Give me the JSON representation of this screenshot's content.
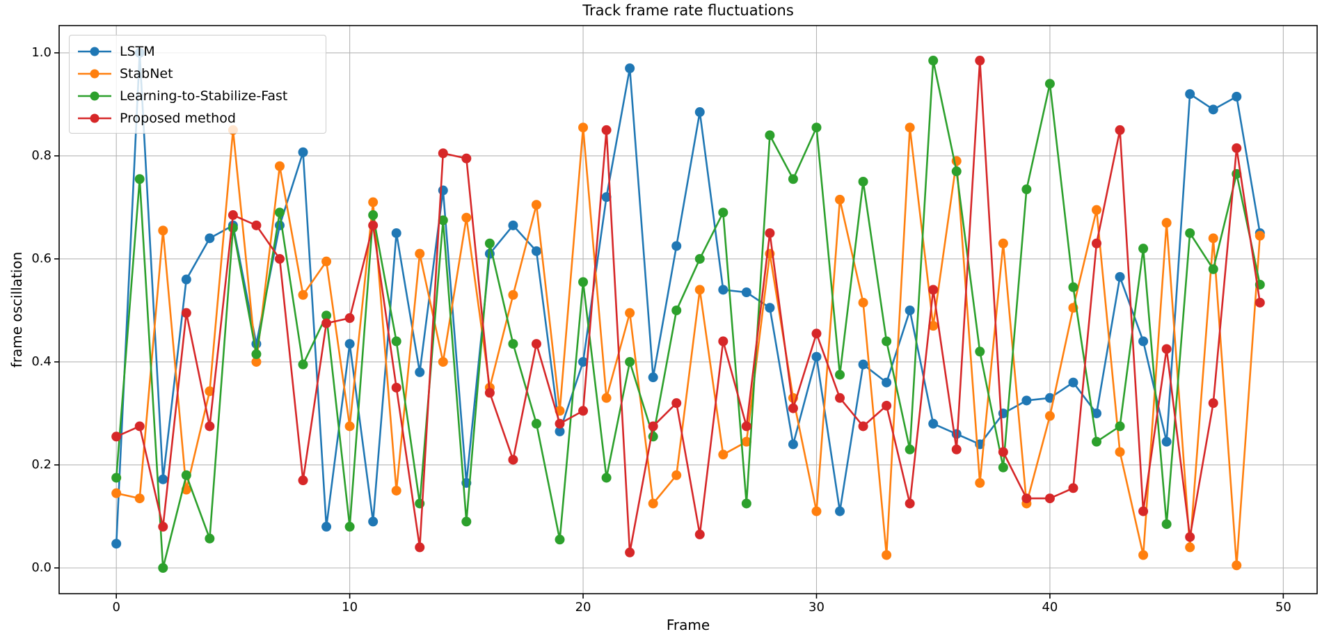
{
  "chart_data": {
    "type": "line",
    "title": "Track frame rate fluctuations",
    "xlabel": "Frame",
    "ylabel": "frame oscillation",
    "xlim": [
      -2.45,
      51.45
    ],
    "ylim": [
      -0.05,
      1.053
    ],
    "xticks": [
      0,
      10,
      20,
      30,
      40,
      50
    ],
    "yticks": [
      0.0,
      0.2,
      0.4,
      0.6,
      0.8,
      1.0
    ],
    "grid": true,
    "legend_position": "upper left",
    "x": [
      0,
      1,
      2,
      3,
      4,
      5,
      6,
      7,
      8,
      9,
      10,
      11,
      12,
      13,
      14,
      15,
      16,
      17,
      18,
      19,
      20,
      21,
      22,
      23,
      24,
      25,
      26,
      27,
      28,
      29,
      30,
      31,
      32,
      33,
      34,
      35,
      36,
      37,
      38,
      39,
      40,
      41,
      42,
      43,
      44,
      45,
      46,
      47,
      48,
      49
    ],
    "series": [
      {
        "name": "LSTM",
        "color": "#1f77b4",
        "values": [
          0.047,
          1.0,
          0.172,
          0.56,
          0.64,
          0.665,
          0.435,
          0.665,
          0.807,
          0.08,
          0.435,
          0.09,
          0.65,
          0.38,
          0.733,
          0.165,
          0.61,
          0.665,
          0.615,
          0.265,
          0.4,
          0.72,
          0.97,
          0.37,
          0.625,
          0.885,
          0.54,
          0.535,
          0.505,
          0.24,
          0.41,
          0.11,
          0.395,
          0.36,
          0.5,
          0.28,
          0.26,
          0.24,
          0.3,
          0.325,
          0.33,
          0.36,
          0.3,
          0.565,
          0.44,
          0.245,
          0.92,
          0.89,
          0.915,
          0.65
        ]
      },
      {
        "name": "StabNet",
        "color": "#ff7f0e",
        "values": [
          0.145,
          0.135,
          0.655,
          0.152,
          0.343,
          0.85,
          0.4,
          0.78,
          0.53,
          0.595,
          0.275,
          0.71,
          0.15,
          0.61,
          0.4,
          0.68,
          0.35,
          0.53,
          0.705,
          0.305,
          0.855,
          0.33,
          0.495,
          0.125,
          0.18,
          0.54,
          0.22,
          0.245,
          0.61,
          0.33,
          0.11,
          0.715,
          0.515,
          0.025,
          0.855,
          0.47,
          0.79,
          0.165,
          0.63,
          0.125,
          0.295,
          0.505,
          0.695,
          0.225,
          0.025,
          0.67,
          0.04,
          0.64,
          0.005,
          0.645
        ]
      },
      {
        "name": "Learning-to-Stabilize-Fast",
        "color": "#2ca02c",
        "values": [
          0.175,
          0.755,
          0.0,
          0.18,
          0.057,
          0.66,
          0.415,
          0.69,
          0.395,
          0.49,
          0.08,
          0.685,
          0.44,
          0.125,
          0.675,
          0.09,
          0.63,
          0.435,
          0.28,
          0.055,
          0.555,
          0.175,
          0.4,
          0.255,
          0.5,
          0.6,
          0.69,
          0.125,
          0.84,
          0.755,
          0.855,
          0.375,
          0.75,
          0.44,
          0.23,
          0.985,
          0.77,
          0.42,
          0.195,
          0.735,
          0.94,
          0.545,
          0.245,
          0.275,
          0.62,
          0.085,
          0.65,
          0.58,
          0.765,
          0.55
        ]
      },
      {
        "name": "Proposed method",
        "color": "#d62728",
        "values": [
          0.255,
          0.275,
          0.08,
          0.495,
          0.275,
          0.685,
          0.665,
          0.6,
          0.17,
          0.475,
          0.485,
          0.665,
          0.35,
          0.04,
          0.805,
          0.795,
          0.34,
          0.21,
          0.435,
          0.28,
          0.305,
          0.85,
          0.03,
          0.275,
          0.32,
          0.065,
          0.44,
          0.275,
          0.65,
          0.31,
          0.455,
          0.33,
          0.275,
          0.315,
          0.125,
          0.54,
          0.23,
          0.985,
          0.225,
          0.135,
          0.135,
          0.155,
          0.63,
          0.85,
          0.11,
          0.425,
          0.06,
          0.32,
          0.815,
          0.515
        ]
      }
    ]
  }
}
